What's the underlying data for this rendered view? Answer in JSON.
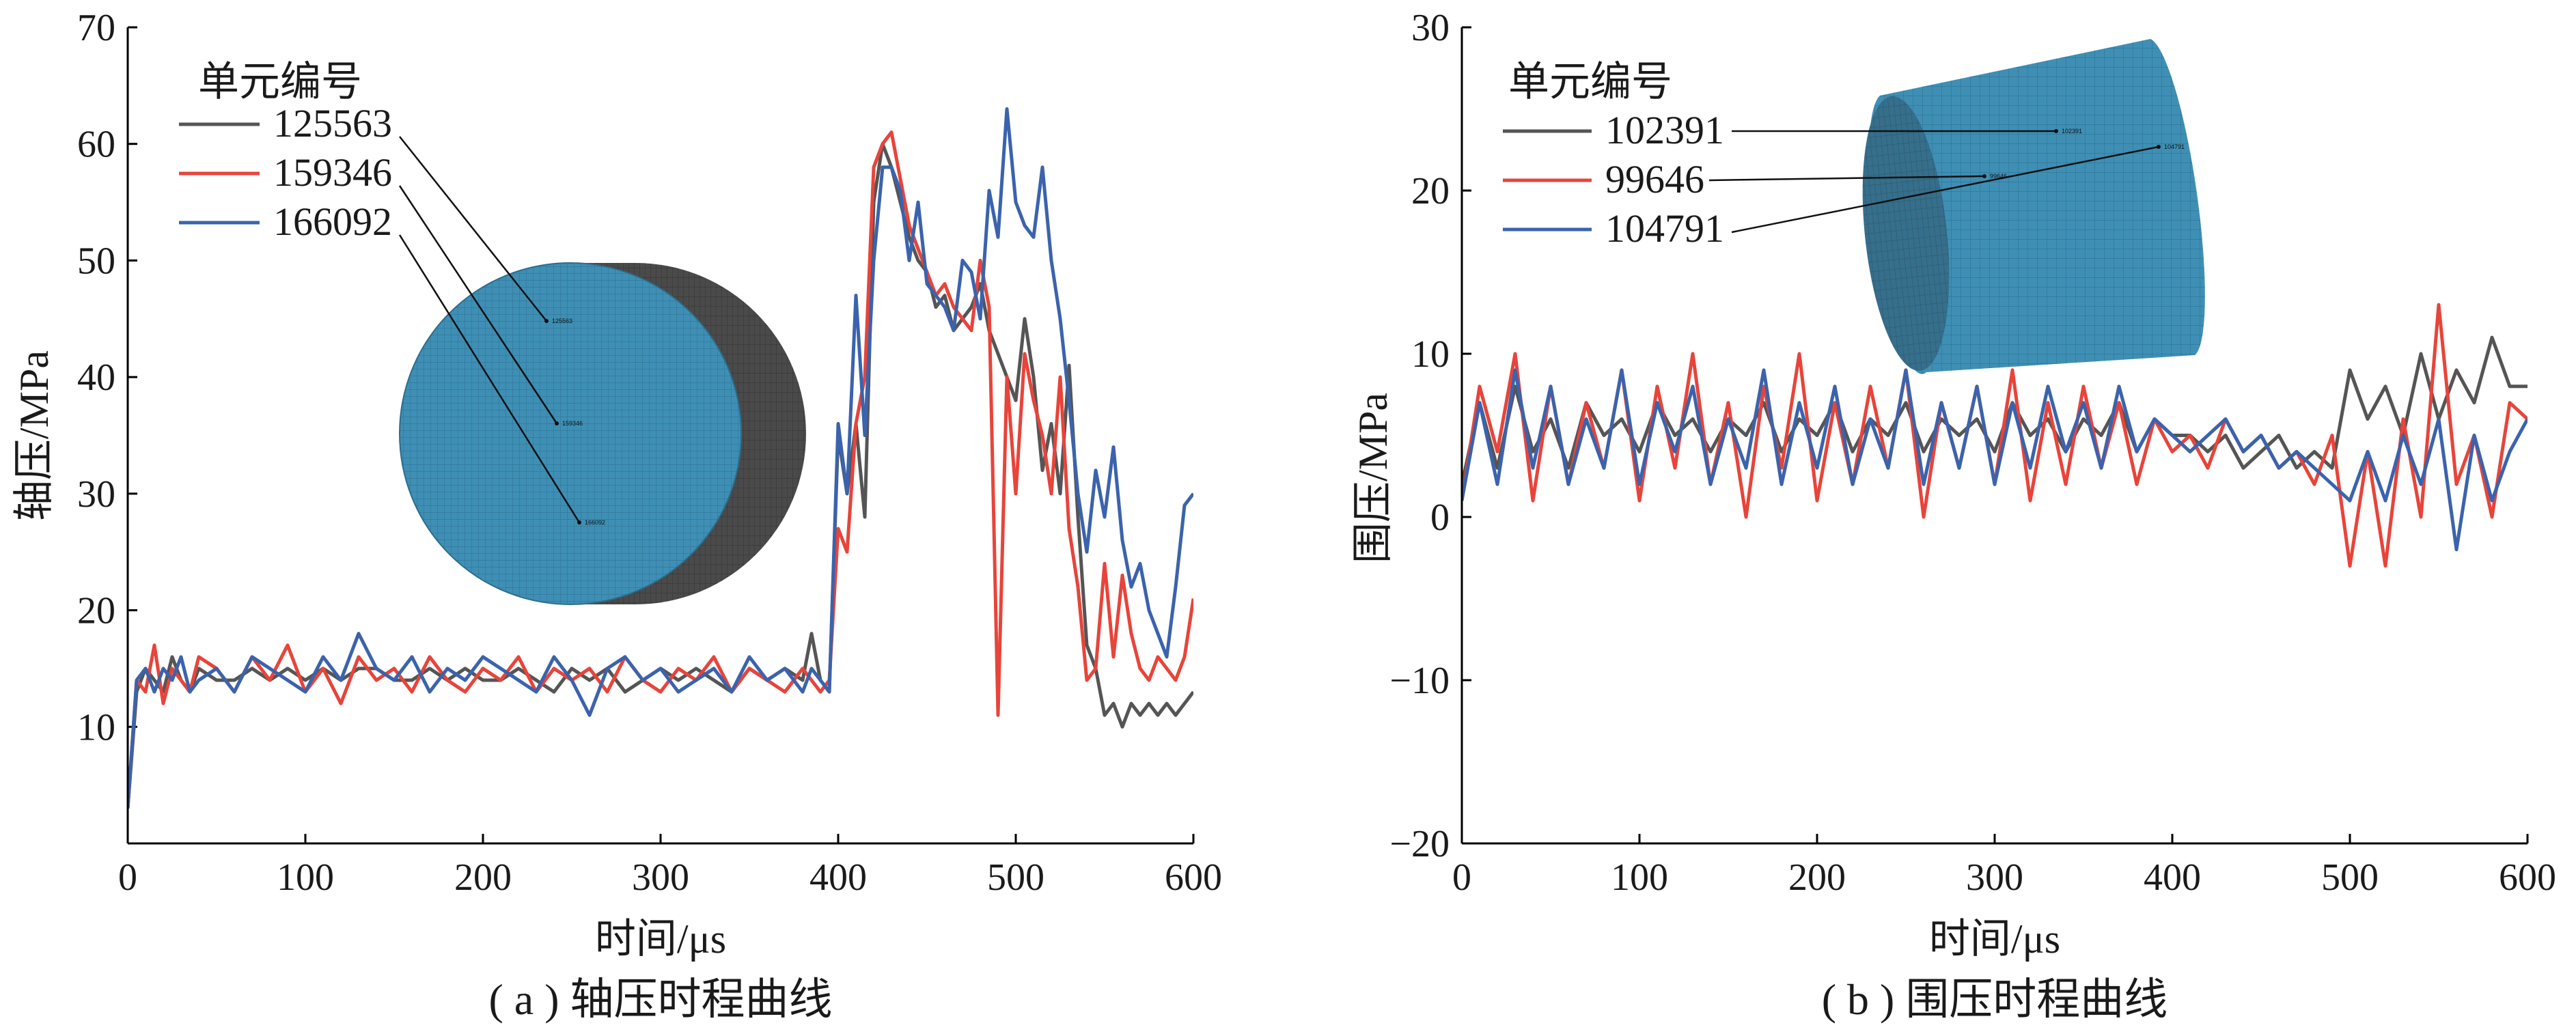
{
  "chart_data": [
    {
      "type": "line",
      "panel_caption": "( a ) 轴压时程曲线",
      "xlabel": "时间/μs",
      "ylabel": "轴压/MPa",
      "xlim": [
        0,
        600
      ],
      "ylim": [
        0,
        70
      ],
      "xticks": [
        0,
        100,
        200,
        300,
        400,
        500,
        600
      ],
      "yticks": [
        10,
        20,
        30,
        40,
        50,
        60,
        70
      ],
      "legend_title": "单元编号",
      "legend_position": "top-left",
      "grid": false,
      "series": [
        {
          "name": "125563",
          "color": "#555555",
          "x": [
            0,
            5,
            10,
            15,
            20,
            25,
            30,
            35,
            40,
            50,
            60,
            70,
            80,
            90,
            100,
            110,
            120,
            130,
            140,
            150,
            160,
            170,
            180,
            190,
            200,
            210,
            220,
            230,
            240,
            250,
            260,
            270,
            280,
            290,
            300,
            310,
            320,
            330,
            340,
            350,
            360,
            370,
            380,
            385,
            390,
            395,
            400,
            405,
            410,
            415,
            420,
            425,
            430,
            435,
            440,
            445,
            450,
            455,
            460,
            465,
            470,
            475,
            480,
            485,
            490,
            495,
            500,
            505,
            510,
            515,
            520,
            525,
            530,
            535,
            540,
            545,
            550,
            555,
            560,
            565,
            570,
            575,
            580,
            585,
            590,
            595,
            600
          ],
          "y": [
            3,
            13,
            15,
            14,
            13,
            16,
            14,
            13,
            15,
            14,
            14,
            15,
            14,
            15,
            14,
            15,
            14,
            15,
            15,
            14,
            14,
            15,
            14,
            15,
            14,
            14,
            15,
            14,
            13,
            15,
            14,
            15,
            13,
            14,
            15,
            14,
            15,
            14,
            13,
            15,
            14,
            15,
            14,
            18,
            14,
            13,
            35,
            30,
            36,
            28,
            55,
            60,
            58,
            55,
            52,
            50,
            49,
            46,
            47,
            44,
            45,
            46,
            48,
            44,
            42,
            40,
            38,
            45,
            40,
            32,
            36,
            30,
            41,
            28,
            17,
            15,
            11,
            12,
            10,
            12,
            11,
            12,
            11,
            12,
            11,
            12,
            13
          ]
        },
        {
          "name": "159346",
          "color": "#e8443a",
          "x": [
            0,
            5,
            10,
            15,
            20,
            25,
            30,
            35,
            40,
            50,
            60,
            70,
            80,
            90,
            100,
            110,
            120,
            130,
            140,
            150,
            160,
            170,
            180,
            190,
            200,
            210,
            220,
            230,
            240,
            250,
            260,
            270,
            280,
            290,
            300,
            310,
            320,
            330,
            340,
            350,
            360,
            370,
            380,
            385,
            390,
            395,
            400,
            405,
            410,
            415,
            420,
            425,
            430,
            435,
            440,
            445,
            450,
            455,
            460,
            465,
            470,
            475,
            480,
            485,
            490,
            495,
            500,
            505,
            510,
            515,
            520,
            525,
            530,
            535,
            540,
            545,
            550,
            555,
            560,
            565,
            570,
            575,
            580,
            585,
            590,
            595,
            600
          ],
          "y": [
            3,
            14,
            13,
            17,
            12,
            15,
            14,
            13,
            16,
            15,
            13,
            16,
            14,
            17,
            13,
            15,
            12,
            16,
            14,
            15,
            13,
            16,
            14,
            13,
            15,
            14,
            16,
            13,
            15,
            14,
            15,
            13,
            16,
            14,
            13,
            15,
            14,
            16,
            13,
            15,
            14,
            13,
            15,
            14,
            13,
            14,
            27,
            25,
            36,
            40,
            58,
            60,
            61,
            57,
            53,
            51,
            49,
            47,
            48,
            46,
            45,
            44,
            50,
            46,
            11,
            40,
            30,
            42,
            38,
            35,
            30,
            40,
            27,
            22,
            14,
            15,
            24,
            16,
            23,
            18,
            15,
            14,
            16,
            15,
            14,
            16,
            21
          ]
        },
        {
          "name": "166092",
          "color": "#3b63ad",
          "x": [
            0,
            5,
            10,
            15,
            20,
            25,
            30,
            35,
            40,
            50,
            60,
            70,
            80,
            90,
            100,
            110,
            120,
            130,
            140,
            150,
            160,
            170,
            180,
            190,
            200,
            210,
            220,
            230,
            240,
            250,
            260,
            270,
            280,
            290,
            300,
            310,
            320,
            330,
            340,
            350,
            360,
            370,
            380,
            385,
            390,
            395,
            400,
            405,
            410,
            415,
            420,
            425,
            430,
            435,
            440,
            445,
            450,
            455,
            460,
            465,
            470,
            475,
            480,
            485,
            490,
            495,
            500,
            505,
            510,
            515,
            520,
            525,
            530,
            535,
            540,
            545,
            550,
            555,
            560,
            565,
            570,
            575,
            580,
            585,
            590,
            595,
            600
          ],
          "y": [
            3,
            14,
            15,
            13,
            15,
            14,
            16,
            13,
            14,
            15,
            13,
            16,
            15,
            14,
            13,
            16,
            14,
            18,
            15,
            14,
            16,
            13,
            15,
            14,
            16,
            15,
            14,
            13,
            16,
            14,
            11,
            15,
            16,
            14,
            15,
            13,
            14,
            15,
            13,
            16,
            14,
            15,
            13,
            15,
            14,
            13,
            36,
            30,
            47,
            35,
            50,
            58,
            58,
            56,
            50,
            55,
            48,
            47,
            46,
            44,
            50,
            49,
            45,
            56,
            52,
            63,
            55,
            53,
            52,
            58,
            50,
            45,
            38,
            30,
            25,
            32,
            28,
            34,
            26,
            22,
            24,
            20,
            18,
            16,
            22,
            29,
            30
          ]
        }
      ]
    },
    {
      "type": "line",
      "panel_caption": "( b ) 围压时程曲线",
      "xlabel": "时间/μs",
      "ylabel": "围压/MPa",
      "xlim": [
        0,
        600
      ],
      "ylim": [
        -20,
        30
      ],
      "xticks": [
        0,
        100,
        200,
        300,
        400,
        500,
        600
      ],
      "yticks": [
        -20,
        -10,
        0,
        10,
        20,
        30
      ],
      "legend_title": "单元编号",
      "legend_position": "top-left",
      "grid": false,
      "series": [
        {
          "name": "102391",
          "color": "#555555",
          "x": [
            0,
            10,
            20,
            30,
            40,
            50,
            60,
            70,
            80,
            90,
            100,
            110,
            120,
            130,
            140,
            150,
            160,
            170,
            180,
            190,
            200,
            210,
            220,
            230,
            240,
            250,
            260,
            270,
            280,
            290,
            300,
            310,
            320,
            330,
            340,
            350,
            360,
            370,
            380,
            390,
            400,
            410,
            420,
            430,
            440,
            450,
            460,
            470,
            480,
            490,
            500,
            510,
            520,
            530,
            540,
            550,
            560,
            570,
            580,
            590,
            600
          ],
          "y": [
            2,
            7,
            3,
            8,
            4,
            6,
            3,
            7,
            5,
            6,
            4,
            7,
            5,
            6,
            4,
            6,
            5,
            7,
            4,
            6,
            5,
            7,
            4,
            6,
            5,
            7,
            4,
            6,
            5,
            6,
            4,
            7,
            5,
            6,
            4,
            6,
            5,
            7,
            4,
            6,
            5,
            5,
            4,
            5,
            3,
            4,
            5,
            3,
            4,
            3,
            9,
            6,
            8,
            5,
            10,
            6,
            9,
            7,
            11,
            8,
            8
          ]
        },
        {
          "name": "99646",
          "color": "#e8443a",
          "x": [
            0,
            10,
            20,
            30,
            40,
            50,
            60,
            70,
            80,
            90,
            100,
            110,
            120,
            130,
            140,
            150,
            160,
            170,
            180,
            190,
            200,
            210,
            220,
            230,
            240,
            250,
            260,
            270,
            280,
            290,
            300,
            310,
            320,
            330,
            340,
            350,
            360,
            370,
            380,
            390,
            400,
            410,
            420,
            430,
            440,
            450,
            460,
            470,
            480,
            490,
            500,
            510,
            520,
            530,
            540,
            550,
            560,
            570,
            580,
            590,
            600
          ],
          "y": [
            1,
            8,
            4,
            10,
            1,
            8,
            2,
            7,
            3,
            9,
            1,
            8,
            3,
            10,
            2,
            7,
            0,
            8,
            3,
            10,
            1,
            7,
            2,
            8,
            3,
            9,
            0,
            7,
            3,
            8,
            2,
            9,
            1,
            7,
            2,
            8,
            3,
            7,
            2,
            6,
            4,
            5,
            3,
            6,
            4,
            5,
            3,
            4,
            2,
            5,
            -3,
            4,
            -3,
            6,
            0,
            13,
            2,
            5,
            0,
            7,
            6
          ]
        },
        {
          "name": "104791",
          "color": "#3b63ad",
          "x": [
            0,
            10,
            20,
            30,
            40,
            50,
            60,
            70,
            80,
            90,
            100,
            110,
            120,
            130,
            140,
            150,
            160,
            170,
            180,
            190,
            200,
            210,
            220,
            230,
            240,
            250,
            260,
            270,
            280,
            290,
            300,
            310,
            320,
            330,
            340,
            350,
            360,
            370,
            380,
            390,
            400,
            410,
            420,
            430,
            440,
            450,
            460,
            470,
            480,
            490,
            500,
            510,
            520,
            530,
            540,
            550,
            560,
            570,
            580,
            590,
            600
          ],
          "y": [
            1,
            7,
            2,
            9,
            3,
            8,
            2,
            6,
            3,
            9,
            2,
            7,
            4,
            8,
            2,
            6,
            3,
            9,
            2,
            7,
            3,
            8,
            2,
            6,
            3,
            9,
            2,
            7,
            3,
            8,
            2,
            7,
            3,
            8,
            4,
            7,
            3,
            8,
            4,
            6,
            5,
            4,
            5,
            6,
            4,
            5,
            3,
            4,
            3,
            2,
            1,
            4,
            1,
            5,
            2,
            6,
            -2,
            5,
            1,
            4,
            6
          ]
        }
      ]
    }
  ],
  "inset_a": {
    "element_labels": [
      "125563",
      "159346",
      "166092"
    ],
    "face_color": "#3f8fb5",
    "side_color": "#4a4a4a",
    "mesh_color": "#1e5f7f"
  },
  "inset_b": {
    "element_labels": [
      "102391",
      "99646",
      "104791"
    ],
    "face_color": "#3f8fb5",
    "mesh_color": "#1e5f7f"
  },
  "axis_color": "#000000"
}
